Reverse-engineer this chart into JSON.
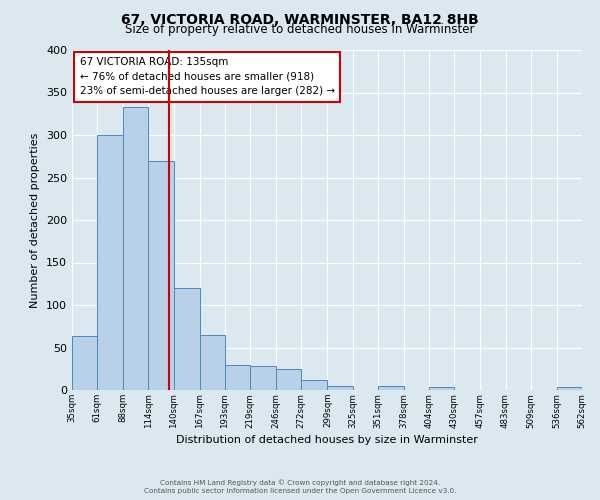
{
  "title": "67, VICTORIA ROAD, WARMINSTER, BA12 8HB",
  "subtitle": "Size of property relative to detached houses in Warminster",
  "xlabel": "Distribution of detached houses by size in Warminster",
  "ylabel": "Number of detached properties",
  "bin_edges": [
    35,
    61,
    88,
    114,
    140,
    167,
    193,
    219,
    246,
    272,
    299,
    325,
    351,
    378,
    404,
    430,
    457,
    483,
    509,
    536,
    562
  ],
  "bar_heights": [
    63,
    300,
    333,
    270,
    120,
    65,
    30,
    28,
    25,
    12,
    5,
    0,
    5,
    0,
    3,
    0,
    0,
    0,
    0,
    3
  ],
  "bar_color": "#b8d0e8",
  "bar_edge_color": "#4d88bb",
  "property_size": 135,
  "vline_color": "#cc0000",
  "annotation_line1": "67 VICTORIA ROAD: 135sqm",
  "annotation_line2": "← 76% of detached houses are smaller (918)",
  "annotation_line3": "23% of semi-detached houses are larger (282) →",
  "annotation_box_facecolor": "#ffffff",
  "annotation_box_edgecolor": "#cc0000",
  "ylim": [
    0,
    400
  ],
  "yticks": [
    0,
    50,
    100,
    150,
    200,
    250,
    300,
    350,
    400
  ],
  "background_color": "#dce8f0",
  "grid_color": "#ffffff",
  "footer_line1": "Contains HM Land Registry data © Crown copyright and database right 2024.",
  "footer_line2": "Contains public sector information licensed under the Open Government Licence v3.0."
}
